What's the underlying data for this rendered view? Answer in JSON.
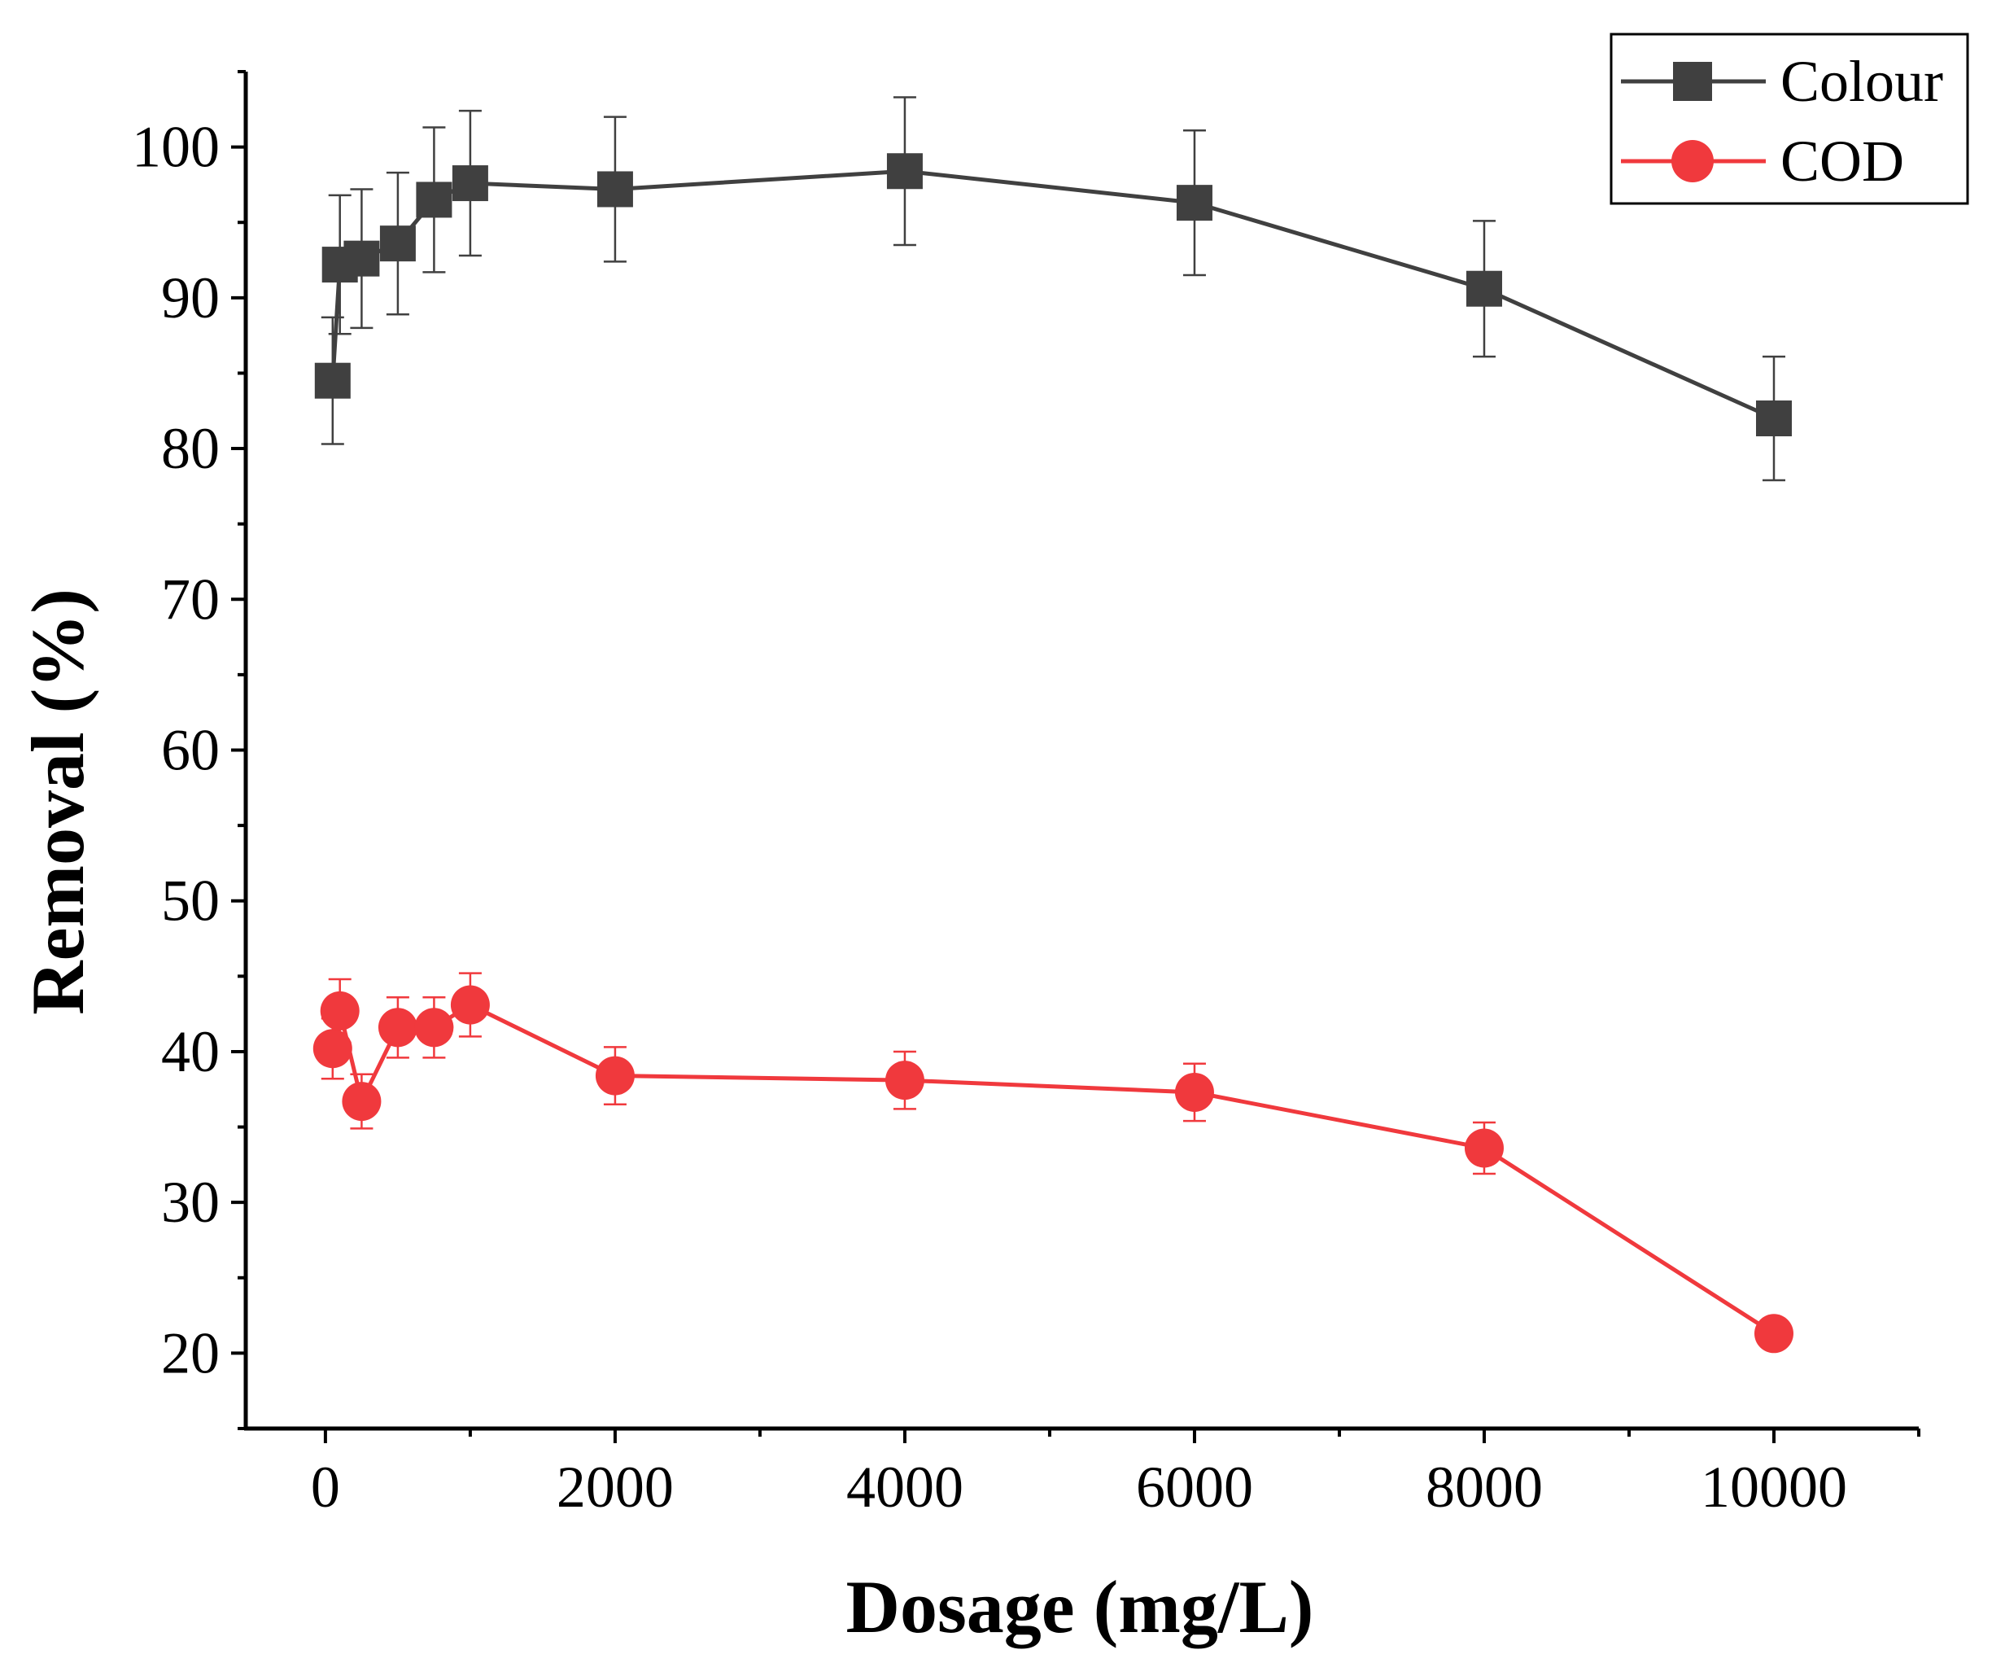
{
  "chart_data": {
    "type": "line",
    "title": "",
    "xlabel": "Dosage (mg/L)",
    "ylabel": "Removal (%)",
    "xlim": [
      -550,
      11000
    ],
    "ylim": [
      15,
      105
    ],
    "xticks": [
      0,
      2000,
      4000,
      6000,
      8000,
      10000
    ],
    "xticks_minor": [
      1000,
      3000,
      5000,
      7000,
      9000,
      11000
    ],
    "yticks": [
      20,
      30,
      40,
      50,
      60,
      70,
      80,
      90,
      100
    ],
    "yticks_minor": [
      15,
      25,
      35,
      45,
      55,
      65,
      75,
      85,
      95,
      105
    ],
    "grid": false,
    "legend_position": "top-right",
    "series": [
      {
        "name": "Colour",
        "color": "#404040",
        "marker": "square",
        "x": [
          50,
          100,
          250,
          500,
          750,
          1000,
          2000,
          4000,
          6000,
          8000,
          10000
        ],
        "y": [
          84.5,
          92.2,
          92.6,
          93.6,
          96.5,
          97.6,
          97.2,
          98.4,
          96.3,
          90.6,
          82.0
        ],
        "err": [
          4.2,
          4.6,
          4.6,
          4.7,
          4.8,
          4.8,
          4.8,
          4.9,
          4.8,
          4.5,
          4.1
        ]
      },
      {
        "name": "COD",
        "color": "#f0393d",
        "marker": "circle",
        "x": [
          50,
          100,
          250,
          500,
          750,
          1000,
          2000,
          4000,
          6000,
          8000,
          10000
        ],
        "y": [
          40.2,
          42.7,
          36.7,
          41.6,
          41.6,
          43.1,
          38.4,
          38.1,
          37.3,
          33.6,
          21.3
        ],
        "err": [
          2.0,
          2.1,
          1.8,
          2.0,
          2.0,
          2.1,
          1.9,
          1.9,
          1.9,
          1.7,
          0.7
        ]
      }
    ]
  }
}
